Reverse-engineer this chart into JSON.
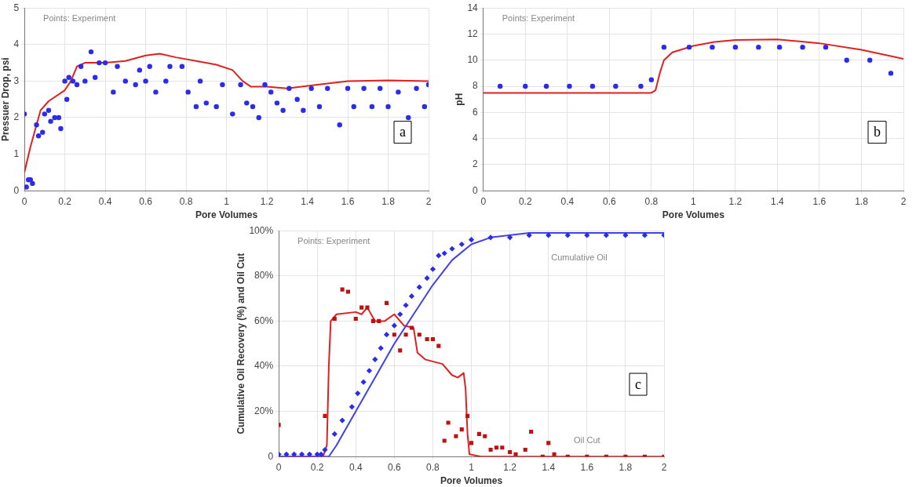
{
  "chart_data": [
    {
      "type": "scatter",
      "xlabel": "Pore Volumes",
      "ylabel": "Pressuer Drop, psi",
      "xlim": [
        0,
        2
      ],
      "ylim": [
        0,
        5
      ],
      "xticks": [
        0,
        0.2,
        0.4,
        0.6,
        0.8,
        1,
        1.2,
        1.4,
        1.6,
        1.8,
        2
      ],
      "yticks": [
        0,
        1,
        2,
        3,
        4,
        5
      ],
      "grid": true,
      "legend": false,
      "annotations": [
        "Points: Experiment",
        "a"
      ],
      "series": [
        {
          "type": "scatter",
          "color": "#2b2bf0",
          "marker": "circle",
          "x": [
            0,
            0.01,
            0.02,
            0.03,
            0.04,
            0.06,
            0.07,
            0.09,
            0.1,
            0.12,
            0.13,
            0.15,
            0.17,
            0.18,
            0.2,
            0.21,
            0.22,
            0.24,
            0.26,
            0.28,
            0.3,
            0.33,
            0.35,
            0.37,
            0.4,
            0.44,
            0.46,
            0.5,
            0.55,
            0.57,
            0.6,
            0.62,
            0.65,
            0.7,
            0.72,
            0.78,
            0.81,
            0.85,
            0.87,
            0.9,
            0.95,
            0.98,
            1.03,
            1.07,
            1.1,
            1.13,
            1.16,
            1.19,
            1.22,
            1.25,
            1.28,
            1.31,
            1.35,
            1.38,
            1.42,
            1.46,
            1.5,
            1.56,
            1.6,
            1.63,
            1.68,
            1.72,
            1.76,
            1.8,
            1.85,
            1.9,
            1.94,
            1.98,
            2
          ],
          "values": [
            2.1,
            0.1,
            0.3,
            0.3,
            0.2,
            1.8,
            1.5,
            1.6,
            2.1,
            2.2,
            1.9,
            2.0,
            2.0,
            1.7,
            3.0,
            2.5,
            3.1,
            3.0,
            2.9,
            3.4,
            3.0,
            3.8,
            3.1,
            3.5,
            3.5,
            2.7,
            3.4,
            3.0,
            2.9,
            3.3,
            3.0,
            3.4,
            2.7,
            3.0,
            3.4,
            3.4,
            2.7,
            2.3,
            3.0,
            2.4,
            2.3,
            2.9,
            2.1,
            2.9,
            2.4,
            2.3,
            2.0,
            2.9,
            2.7,
            2.4,
            2.2,
            2.8,
            2.5,
            2.2,
            2.8,
            2.3,
            2.8,
            1.8,
            2.8,
            2.3,
            2.8,
            2.3,
            2.8,
            2.3,
            2.7,
            2.0,
            2.8,
            2.3,
            2.9
          ]
        },
        {
          "type": "line",
          "color": "#e02020",
          "marker": "none",
          "x": [
            0,
            0.03,
            0.06,
            0.08,
            0.12,
            0.2,
            0.23,
            0.26,
            0.3,
            0.4,
            0.5,
            0.6,
            0.67,
            0.75,
            0.85,
            0.95,
            1.03,
            1.08,
            1.12,
            1.2,
            1.3,
            1.45,
            1.6,
            1.8,
            2
          ],
          "values": [
            0.5,
            1.2,
            1.8,
            2.2,
            2.45,
            2.75,
            3.0,
            3.4,
            3.5,
            3.5,
            3.55,
            3.7,
            3.75,
            3.65,
            3.55,
            3.45,
            3.3,
            3.0,
            2.85,
            2.85,
            2.8,
            2.9,
            3.0,
            3.02,
            3.0
          ]
        }
      ]
    },
    {
      "type": "scatter",
      "xlabel": "Pore Volumes",
      "ylabel": "pH",
      "xlim": [
        0,
        2
      ],
      "ylim": [
        0,
        14
      ],
      "xticks": [
        0,
        0.2,
        0.4,
        0.6,
        0.8,
        1,
        1.2,
        1.4,
        1.6,
        1.8,
        2
      ],
      "yticks": [
        0,
        2,
        4,
        6,
        8,
        10,
        12,
        14
      ],
      "grid": true,
      "legend": false,
      "annotations": [
        "Points: Experiment",
        "b"
      ],
      "series": [
        {
          "type": "scatter",
          "color": "#2b2bf0",
          "marker": "circle",
          "x": [
            0.08,
            0.2,
            0.3,
            0.41,
            0.52,
            0.63,
            0.75,
            0.8,
            0.86,
            0.98,
            1.09,
            1.2,
            1.31,
            1.41,
            1.52,
            1.63,
            1.73,
            1.84,
            1.94
          ],
          "values": [
            8,
            8,
            8,
            8,
            8,
            8,
            8,
            8.5,
            11,
            11,
            11,
            11,
            11,
            11,
            11,
            11,
            10,
            10,
            9
          ]
        },
        {
          "type": "line",
          "color": "#e02020",
          "marker": "none",
          "x": [
            0,
            0.8,
            0.82,
            0.84,
            0.86,
            0.9,
            1,
            1.1,
            1.2,
            1.4,
            1.6,
            1.8,
            2
          ],
          "values": [
            7.5,
            7.5,
            7.7,
            9,
            10,
            10.6,
            11.1,
            11.4,
            11.55,
            11.6,
            11.3,
            10.8,
            10.1
          ]
        }
      ]
    },
    {
      "type": "scatter",
      "xlabel": "Pore Volumes",
      "ylabel": "Cumulative Oil Recovery (%) and Oil Cut",
      "xlim": [
        0,
        2
      ],
      "ylim": [
        0,
        100
      ],
      "xticks": [
        0,
        0.2,
        0.4,
        0.6,
        0.8,
        1,
        1.2,
        1.4,
        1.6,
        1.8,
        2
      ],
      "yticks": [
        {
          "value": 0,
          "label": "0"
        },
        {
          "value": 20,
          "label": "20%"
        },
        {
          "value": 40,
          "label": "40%"
        },
        {
          "value": 60,
          "label": "60%"
        },
        {
          "value": 80,
          "label": "80%"
        },
        {
          "value": 100,
          "label": "100%"
        }
      ],
      "grid": true,
      "legend": false,
      "annotations": [
        "Points: Experiment",
        "c",
        "Cumulative Oil",
        "Oil Cut"
      ],
      "series": [
        {
          "type": "scatter",
          "color": "#2b2bf0",
          "marker": "diamond",
          "x": [
            0,
            0.04,
            0.08,
            0.12,
            0.16,
            0.2,
            0.22,
            0.24,
            0.29,
            0.33,
            0.38,
            0.41,
            0.44,
            0.47,
            0.5,
            0.53,
            0.56,
            0.6,
            0.63,
            0.66,
            0.69,
            0.73,
            0.77,
            0.8,
            0.83,
            0.86,
            0.9,
            0.95,
            1.0,
            1.1,
            1.2,
            1.3,
            1.4,
            1.5,
            1.6,
            1.7,
            1.8,
            1.9,
            2
          ],
          "values": [
            1,
            1,
            1,
            1,
            1,
            1,
            1,
            3,
            10,
            16,
            22,
            28,
            33,
            38,
            43,
            48,
            54,
            58,
            63,
            67,
            71,
            75,
            79,
            83,
            89,
            90,
            92,
            94,
            96,
            97,
            97,
            98,
            98,
            98,
            98,
            98,
            98,
            98,
            98
          ]
        },
        {
          "type": "line",
          "color": "#4040f0",
          "marker": "none",
          "x": [
            0,
            0.26,
            0.3,
            0.4,
            0.5,
            0.6,
            0.7,
            0.8,
            0.9,
            1.0,
            1.1,
            1.3,
            2
          ],
          "values": [
            0,
            0,
            5,
            20,
            35,
            50,
            63,
            76,
            87,
            94,
            97,
            99,
            99
          ]
        },
        {
          "type": "scatter",
          "color": "#c01010",
          "marker": "square",
          "x": [
            0,
            0.24,
            0.29,
            0.33,
            0.36,
            0.4,
            0.43,
            0.46,
            0.49,
            0.52,
            0.56,
            0.6,
            0.63,
            0.66,
            0.69,
            0.73,
            0.77,
            0.8,
            0.83,
            0.86,
            0.88,
            0.92,
            0.95,
            0.98,
            1.0,
            1.04,
            1.07,
            1.1,
            1.13,
            1.16,
            1.2,
            1.23,
            1.28,
            1.31,
            1.37,
            1.4,
            1.43,
            1.5,
            1.6,
            1.7,
            1.8,
            1.9,
            2
          ],
          "values": [
            14,
            18,
            61,
            74,
            73,
            61,
            66,
            66,
            60,
            60,
            68,
            54,
            47,
            54,
            57,
            54,
            52,
            52,
            49,
            7,
            15,
            9,
            12,
            18,
            6,
            10,
            9,
            3,
            4,
            4,
            2,
            1,
            3,
            11,
            0,
            6,
            1,
            0,
            0,
            0,
            0,
            0,
            0
          ]
        },
        {
          "type": "line",
          "color": "#e02020",
          "marker": "none",
          "x": [
            0,
            0.23,
            0.25,
            0.26,
            0.27,
            0.3,
            0.4,
            0.43,
            0.46,
            0.5,
            0.55,
            0.6,
            0.65,
            0.7,
            0.72,
            0.76,
            0.85,
            0.9,
            0.93,
            0.96,
            0.97,
            0.98,
            0.99,
            1.05,
            2
          ],
          "values": [
            0,
            0,
            5,
            40,
            60,
            63,
            64,
            63,
            66,
            60,
            60,
            63,
            58,
            57,
            46,
            43,
            41,
            36,
            35,
            37,
            30,
            10,
            1,
            0,
            0
          ]
        }
      ]
    }
  ]
}
